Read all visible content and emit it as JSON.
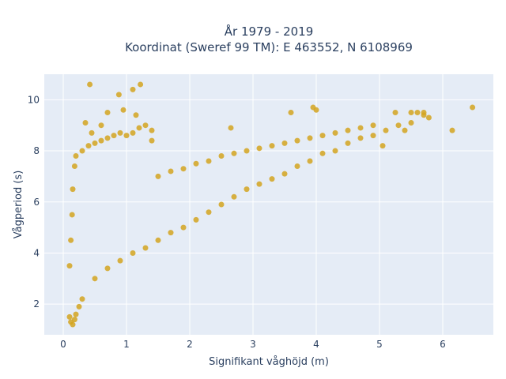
{
  "chart_data": {
    "type": "scatter",
    "title": "År 1979 - 2019",
    "subtitle": "Koordinat (Sweref 99 TM): E 463552, N 6108969",
    "xlabel": "Signifikant våghöjd (m)",
    "ylabel": "Vågperiod (s)",
    "xlim": [
      -0.3,
      6.8
    ],
    "ylim": [
      0.8,
      11.0
    ],
    "xticks": [
      0,
      1,
      2,
      3,
      4,
      5,
      6
    ],
    "yticks": [
      2,
      4,
      6,
      8,
      10
    ],
    "grid": true,
    "legend": "none",
    "colors": {
      "marker": "#D4A520",
      "plot_bg": "#E5ECF6",
      "grid": "#ffffff"
    },
    "series": [
      {
        "points": [
          [
            0.1,
            1.5
          ],
          [
            0.12,
            1.3
          ],
          [
            0.15,
            1.2
          ],
          [
            0.18,
            1.4
          ],
          [
            0.2,
            1.6
          ],
          [
            0.25,
            1.9
          ],
          [
            0.3,
            2.2
          ],
          [
            0.1,
            3.5
          ],
          [
            0.12,
            4.5
          ],
          [
            0.14,
            5.5
          ],
          [
            0.15,
            6.5
          ],
          [
            0.18,
            7.4
          ],
          [
            0.2,
            7.8
          ],
          [
            0.3,
            8.0
          ],
          [
            0.4,
            8.2
          ],
          [
            0.5,
            8.3
          ],
          [
            0.6,
            8.4
          ],
          [
            0.7,
            8.5
          ],
          [
            0.8,
            8.6
          ],
          [
            0.9,
            8.7
          ],
          [
            1.0,
            8.6
          ],
          [
            1.1,
            8.7
          ],
          [
            1.2,
            8.9
          ],
          [
            1.3,
            9.0
          ],
          [
            1.4,
            8.8
          ],
          [
            0.5,
            3.0
          ],
          [
            0.7,
            3.4
          ],
          [
            0.9,
            3.7
          ],
          [
            1.1,
            4.0
          ],
          [
            1.3,
            4.2
          ],
          [
            1.5,
            4.5
          ],
          [
            1.7,
            4.8
          ],
          [
            1.9,
            5.0
          ],
          [
            2.1,
            5.3
          ],
          [
            2.3,
            5.6
          ],
          [
            2.5,
            5.9
          ],
          [
            2.7,
            6.2
          ],
          [
            2.9,
            6.5
          ],
          [
            3.1,
            6.7
          ],
          [
            3.3,
            6.9
          ],
          [
            3.5,
            7.1
          ],
          [
            3.7,
            7.4
          ],
          [
            3.9,
            7.6
          ],
          [
            4.1,
            7.9
          ],
          [
            4.3,
            8.0
          ],
          [
            4.5,
            8.3
          ],
          [
            4.7,
            8.5
          ],
          [
            4.9,
            8.6
          ],
          [
            5.1,
            8.8
          ],
          [
            5.3,
            9.0
          ],
          [
            5.5,
            9.1
          ],
          [
            5.7,
            9.4
          ],
          [
            1.5,
            7.0
          ],
          [
            1.7,
            7.2
          ],
          [
            1.9,
            7.3
          ],
          [
            2.1,
            7.5
          ],
          [
            2.3,
            7.6
          ],
          [
            2.5,
            7.8
          ],
          [
            2.7,
            7.9
          ],
          [
            2.9,
            8.0
          ],
          [
            3.1,
            8.1
          ],
          [
            3.3,
            8.2
          ],
          [
            3.5,
            8.3
          ],
          [
            3.7,
            8.4
          ],
          [
            3.9,
            8.5
          ],
          [
            4.1,
            8.6
          ],
          [
            4.3,
            8.7
          ],
          [
            4.5,
            8.8
          ],
          [
            4.7,
            8.9
          ],
          [
            4.9,
            9.0
          ],
          [
            0.42,
            10.6
          ],
          [
            1.22,
            10.6
          ],
          [
            1.1,
            10.4
          ],
          [
            0.88,
            10.2
          ],
          [
            0.6,
            9.0
          ],
          [
            0.7,
            9.5
          ],
          [
            0.95,
            9.6
          ],
          [
            1.15,
            9.4
          ],
          [
            3.6,
            9.5
          ],
          [
            3.95,
            9.7
          ],
          [
            4.0,
            9.6
          ],
          [
            5.25,
            9.5
          ],
          [
            5.5,
            9.5
          ],
          [
            5.6,
            9.5
          ],
          [
            5.7,
            9.5
          ],
          [
            5.78,
            9.3
          ],
          [
            6.15,
            8.8
          ],
          [
            6.47,
            9.7
          ],
          [
            2.65,
            8.9
          ],
          [
            5.4,
            8.8
          ],
          [
            5.05,
            8.2
          ],
          [
            0.35,
            9.1
          ],
          [
            0.45,
            8.7
          ],
          [
            1.4,
            8.4
          ]
        ]
      }
    ]
  }
}
